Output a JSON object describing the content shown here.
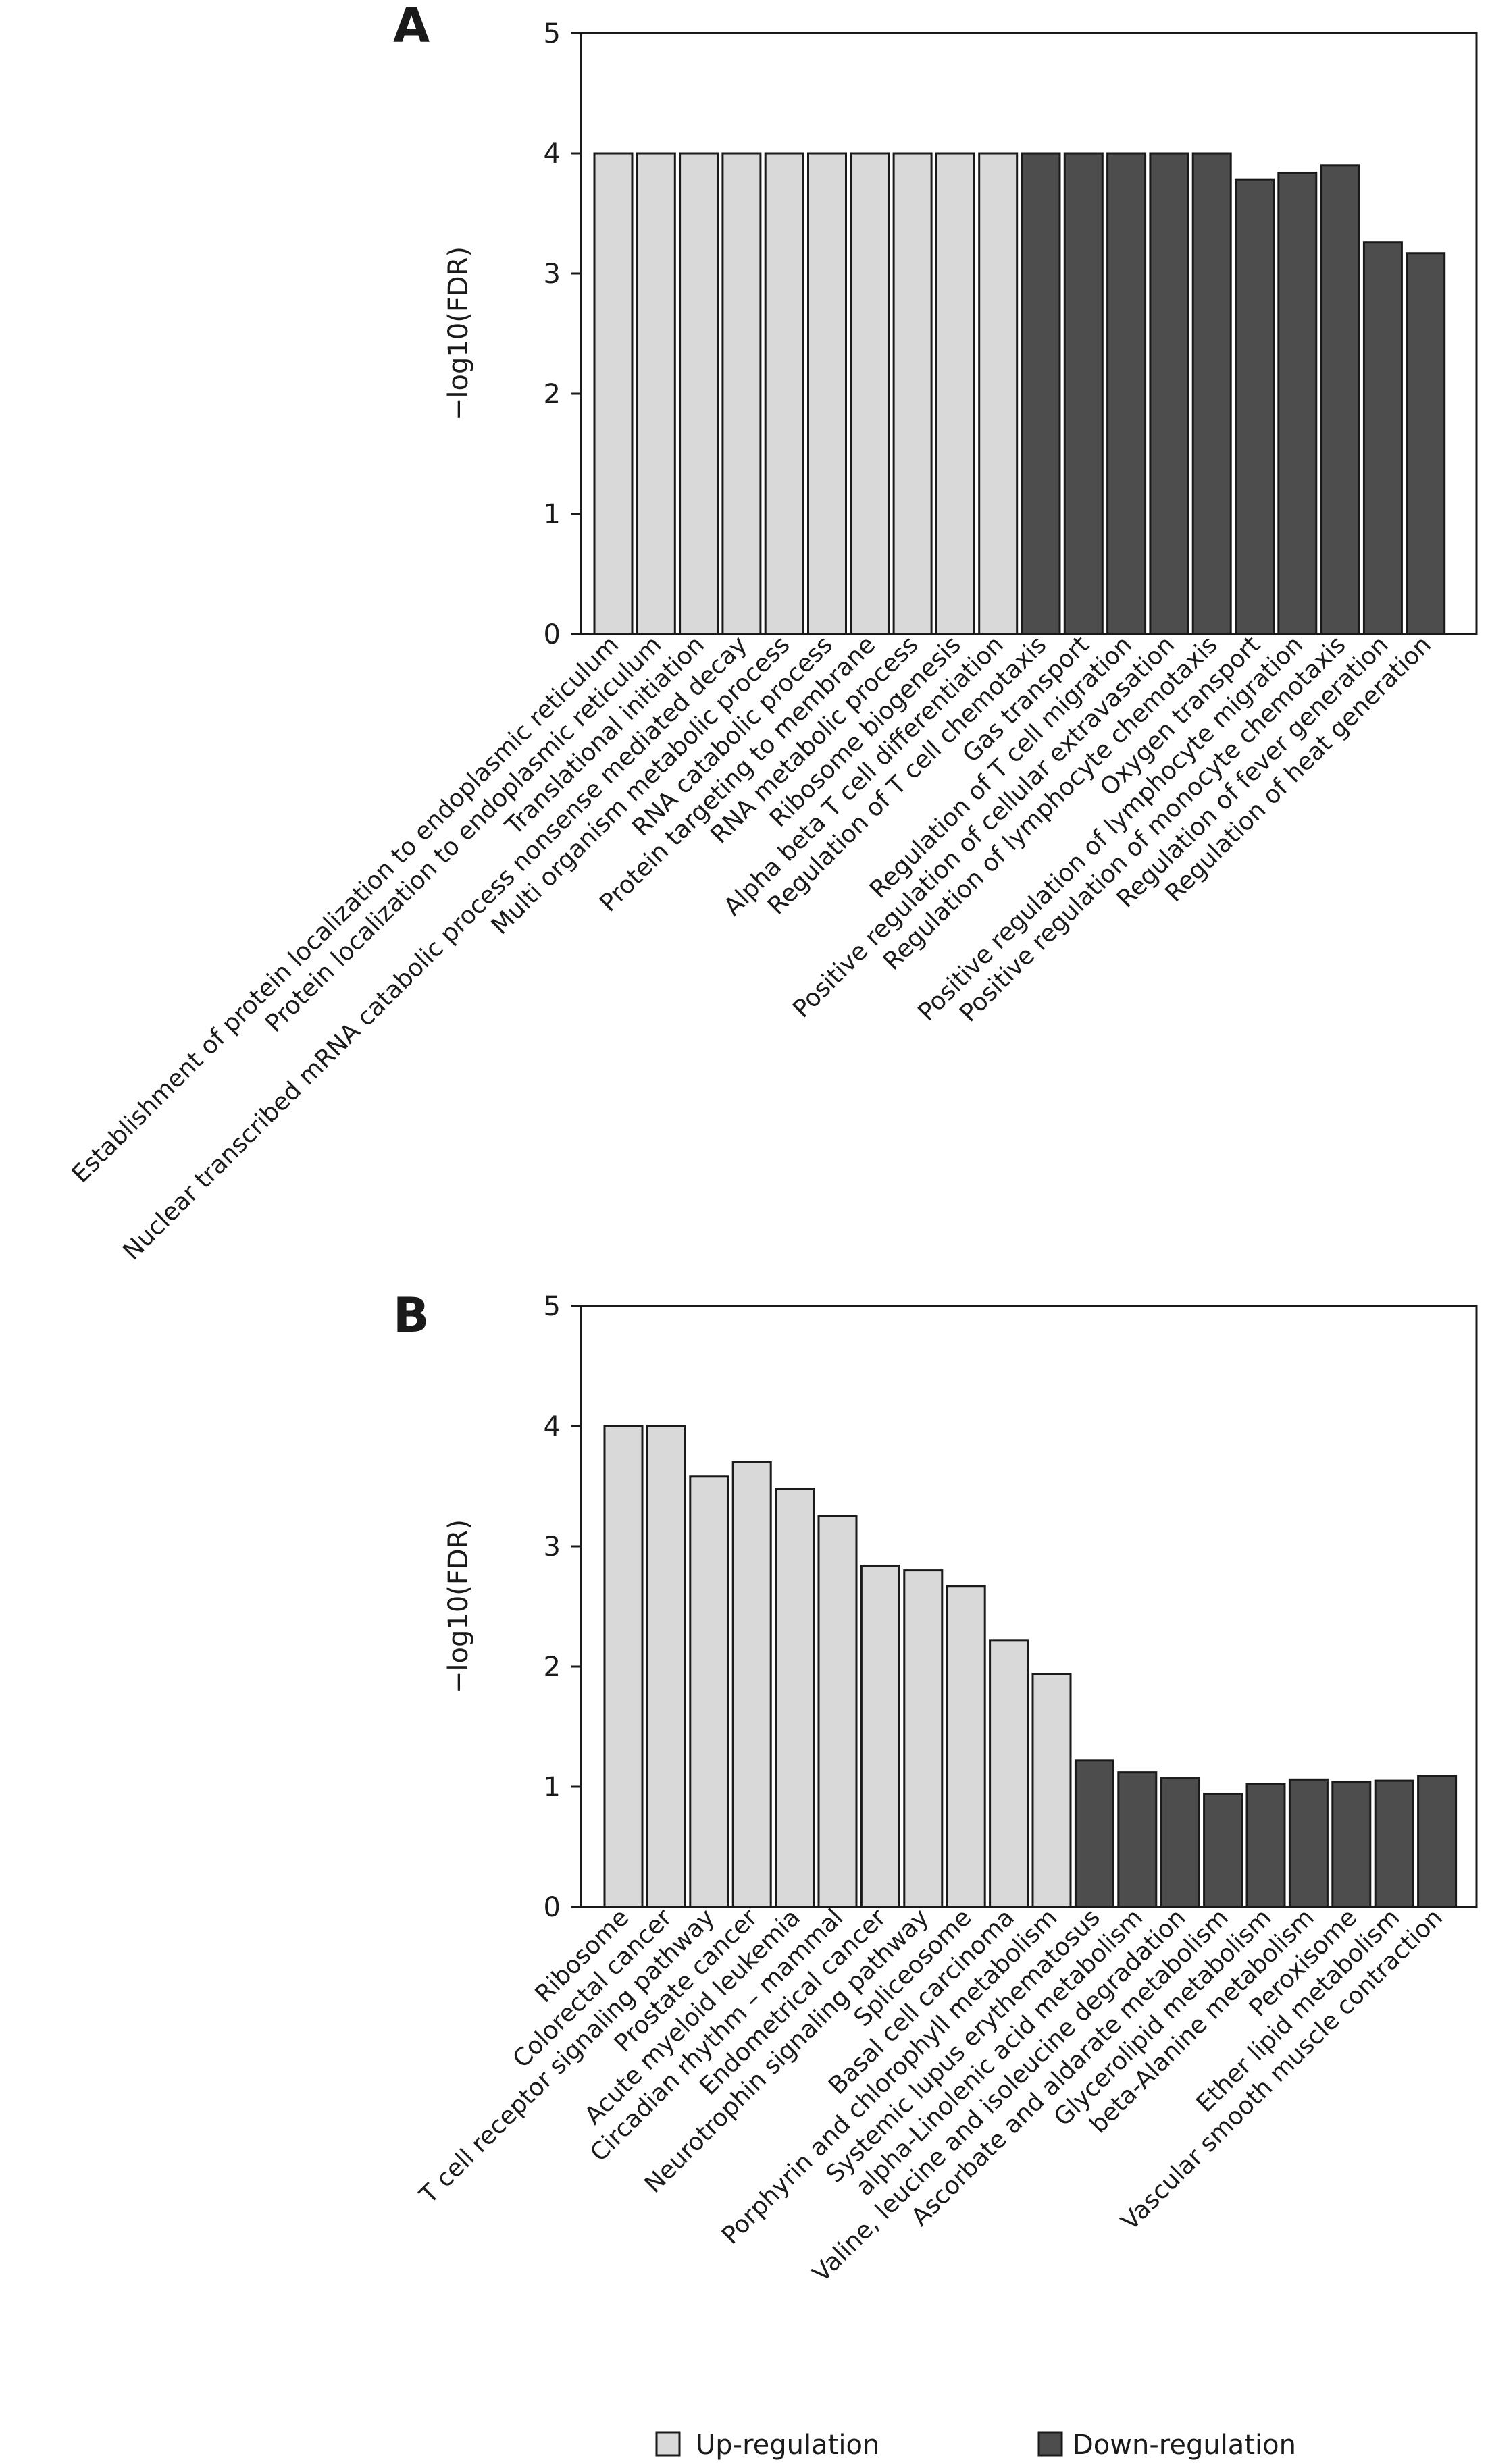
{
  "colors": {
    "up": "#d9d9d9",
    "down": "#4d4d4d",
    "stroke": "#1a1a1a"
  },
  "chart_data": [
    {
      "type": "bar",
      "panel_label": "A",
      "ylabel": "−log10(FDR)",
      "ylim": [
        0,
        5
      ],
      "yticks": [
        "0",
        "1",
        "2",
        "3",
        "4",
        "5"
      ],
      "grid": false,
      "categories": [
        "Establishment of protein localization to endoplasmic reticulum",
        "Protein localization to endoplasmic reticulum",
        "Translational initiation",
        "Nuclear transcribed mRNA catabolic process nonsense mediated decay",
        "Multi organism metabolic process",
        "RNA catabolic process",
        "Protein targeting to membrane",
        "RNA metabolic process",
        "Ribosome biogenesis",
        "Alpha beta T cell differentiation",
        "Regulation of T cell chemotaxis",
        "Gas transport",
        "Regulation of T cell migration",
        "Positive regulation of cellular extravasation",
        "Regulation of lymphocyte chemotaxis",
        "Oxygen transport",
        "Positive regulation of lymphocyte migration",
        "Positive regulation of monocyte chemotaxis",
        "Regulation of fever generation",
        "Regulation of heat generation"
      ],
      "values": [
        4,
        4,
        4,
        4,
        4,
        4,
        4,
        4,
        4,
        4,
        4,
        4,
        4,
        4,
        4,
        3.78,
        3.84,
        3.9,
        3.26,
        3.17
      ],
      "groups": [
        "up",
        "up",
        "up",
        "up",
        "up",
        "up",
        "up",
        "up",
        "up",
        "up",
        "down",
        "down",
        "down",
        "down",
        "down",
        "down",
        "down",
        "down",
        "down",
        "down"
      ]
    },
    {
      "type": "bar",
      "panel_label": "B",
      "ylabel": "−log10(FDR)",
      "ylim": [
        0,
        5
      ],
      "yticks": [
        "0",
        "1",
        "2",
        "3",
        "4",
        "5"
      ],
      "grid": false,
      "categories": [
        "Ribosome",
        "Colorectal cancer",
        "T cell receptor signaling pathway",
        "Prostate cancer",
        "Acute myeloid leukemia",
        "Circadian rhythm – mammal",
        "Endometrical cancer",
        "Neurotrophin signaling pathway",
        "Spliceosome",
        "Basal cell carcinoma",
        "Porphyrin and chlorophyll metabolism",
        "Systemic lupus erythematosus",
        "alpha-Linolenic acid metabolism",
        "Valine, leucine and isoleucine degradation",
        "Ascorbate and aldarate metabolism",
        "Glycerolipid metabolism",
        "beta-Alanine metabolism",
        "Peroxisome",
        "Ether lipid metabolism",
        "Vascular smooth muscle contraction"
      ],
      "values": [
        4,
        4,
        3.58,
        3.7,
        3.48,
        3.25,
        2.84,
        2.8,
        2.67,
        2.22,
        1.94,
        1.22,
        1.12,
        1.07,
        0.94,
        1.02,
        1.06,
        1.04,
        1.05,
        1.09
      ],
      "groups": [
        "up",
        "up",
        "up",
        "up",
        "up",
        "up",
        "up",
        "up",
        "up",
        "up",
        "up",
        "down",
        "down",
        "down",
        "down",
        "down",
        "down",
        "down",
        "down",
        "down"
      ]
    }
  ],
  "legend": {
    "placement": "bottom",
    "items": [
      {
        "label": "Up-regulation",
        "group": "up"
      },
      {
        "label": "Down-regulation",
        "group": "down"
      }
    ]
  }
}
